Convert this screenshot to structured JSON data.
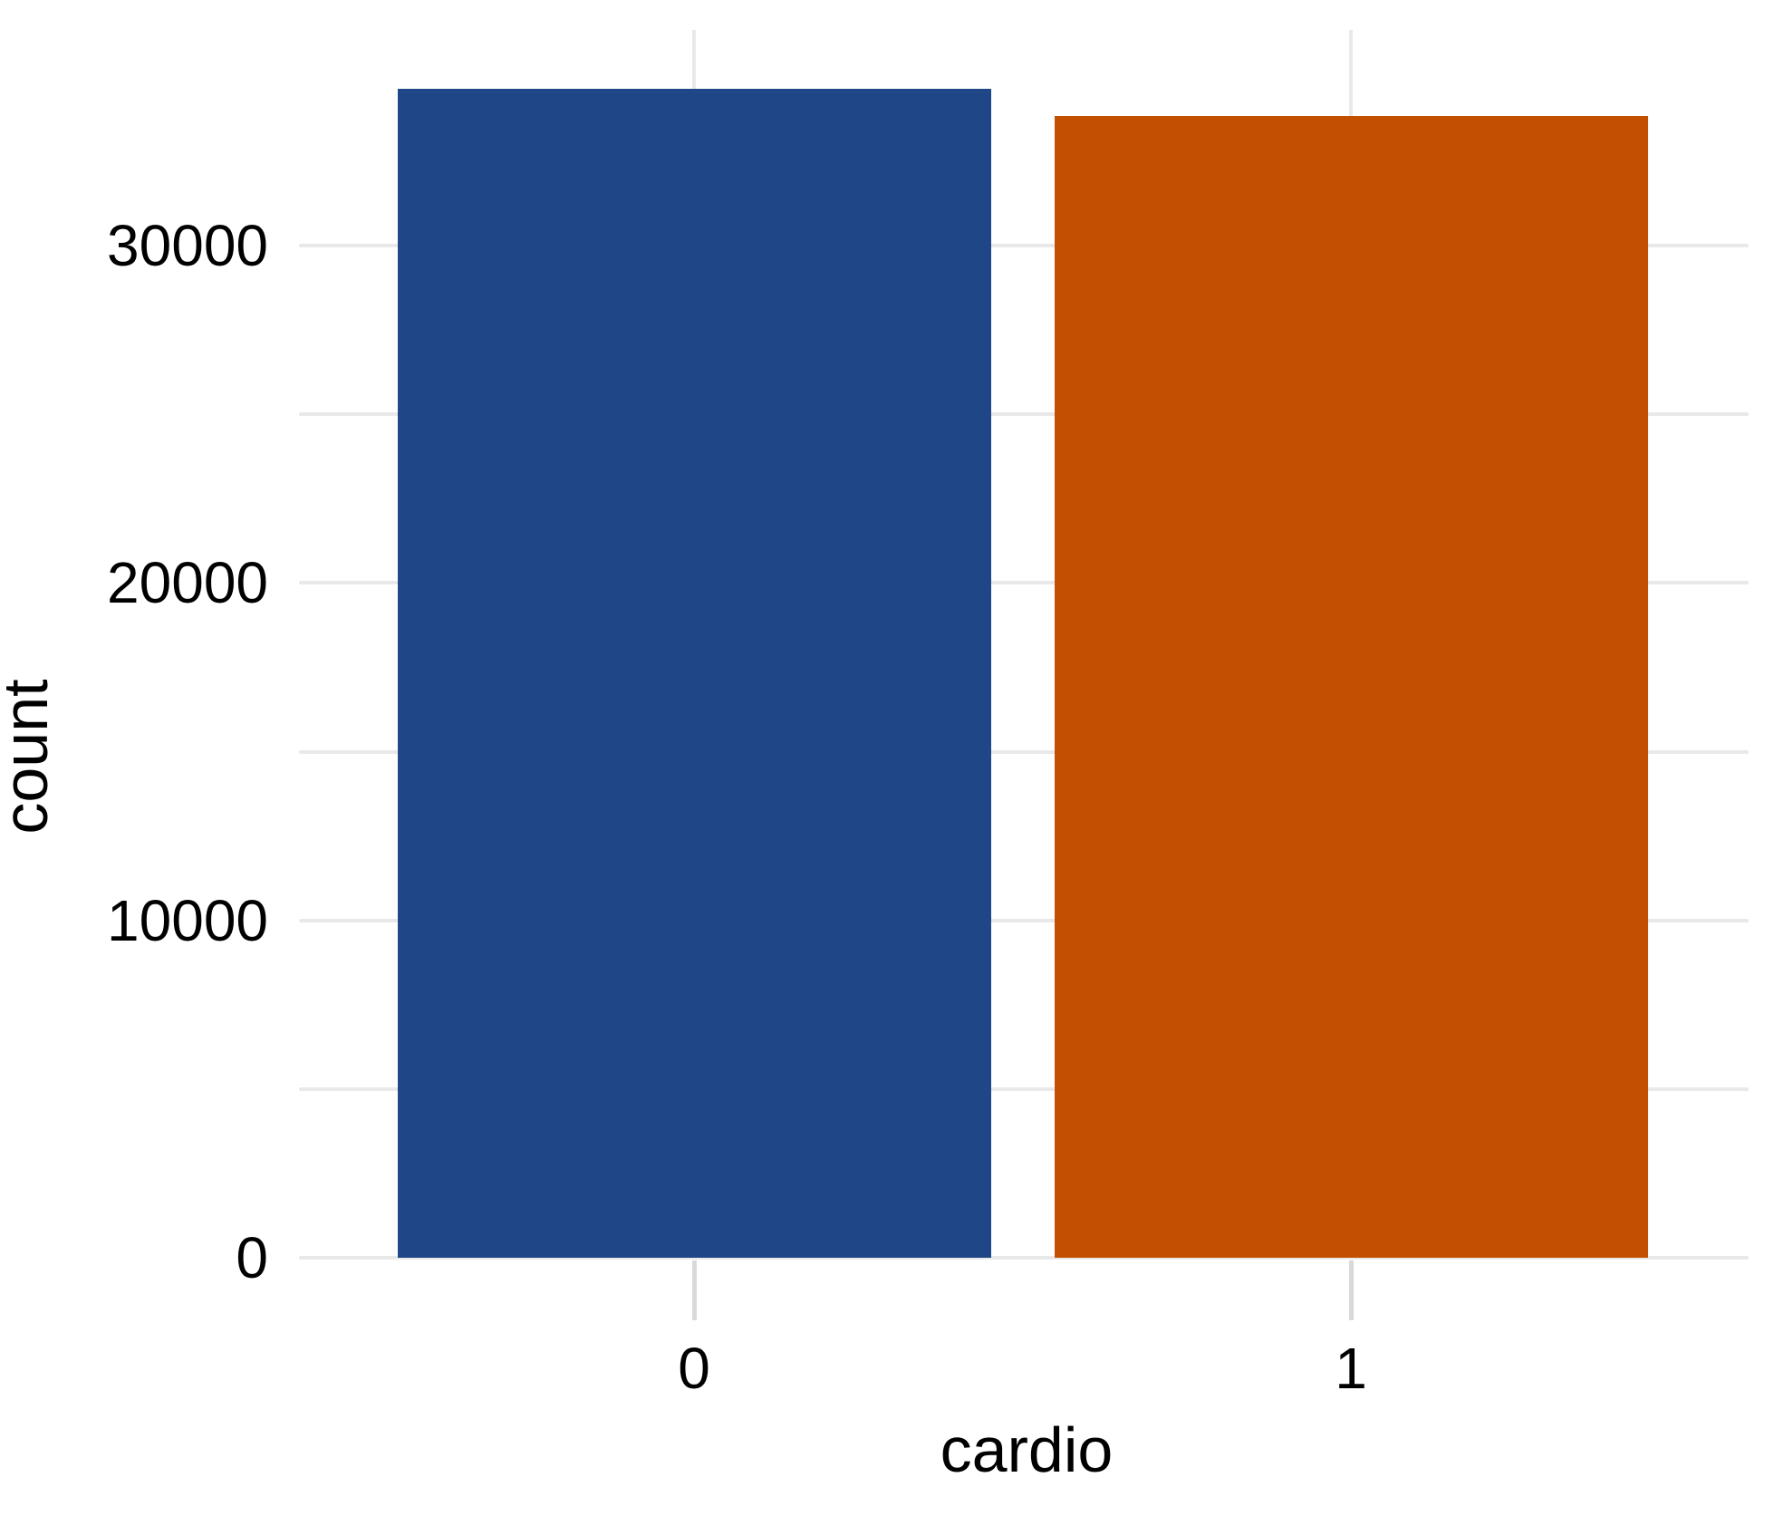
{
  "chart_data": {
    "type": "bar",
    "title": "",
    "xlabel": "cardio",
    "ylabel": "count",
    "categories": [
      "0",
      "1"
    ],
    "values": [
      34650,
      33850
    ],
    "series_note": "single series countplot",
    "bar_colors": [
      "#1f4788",
      "#c35000"
    ],
    "ylim": [
      0,
      36480
    ],
    "grid_interval": 5000,
    "ytick_label_values": [
      0,
      10000,
      20000,
      30000
    ],
    "ytick_labels": [
      "0",
      "10000",
      "20000",
      "30000"
    ],
    "grid": "on",
    "legend": "none",
    "background_color": "#ffffff",
    "gridline_color": "#e9e9e9",
    "text_color": "#000000"
  }
}
